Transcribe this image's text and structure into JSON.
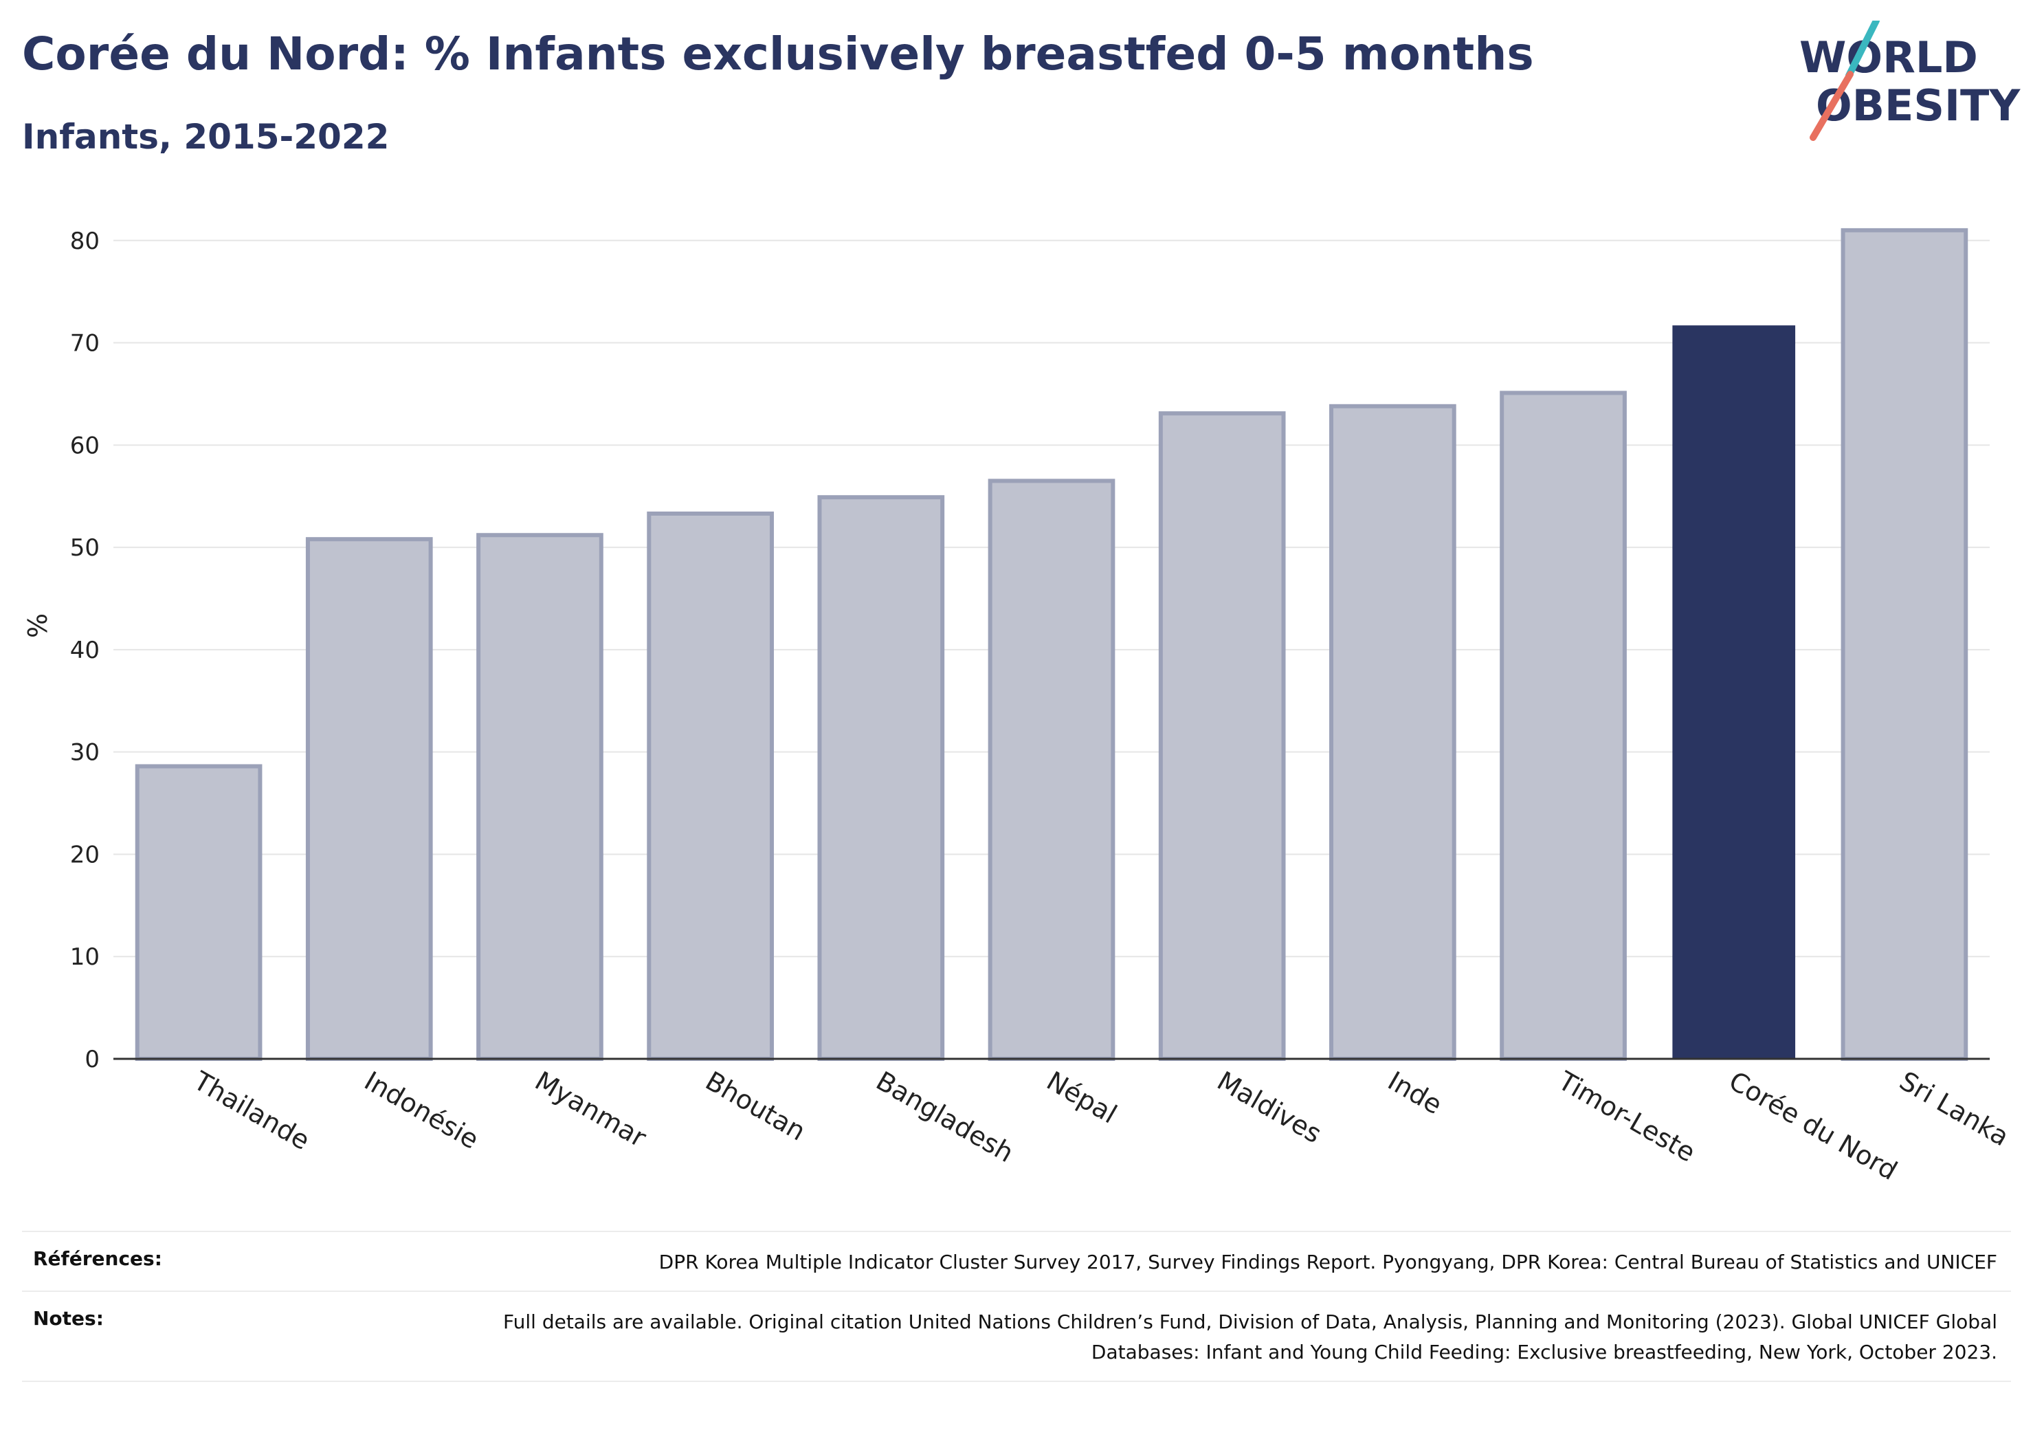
{
  "title": "Corée du Nord: % Infants exclusively breastfed 0-5 months",
  "subtitle": "Infants, 2015-2022",
  "logo": {
    "line1": "WORLD",
    "line2": "OBESITY",
    "accent_teal": "#3ab7bf",
    "accent_coral": "#e8705f"
  },
  "colors": {
    "highlight": "#2a3561",
    "bar_fill": "#bfc2cf",
    "bar_stroke": "#9ba1b8",
    "grid": "#e6e6e6",
    "text": "#2a3561"
  },
  "chart_data": {
    "type": "bar",
    "categories": [
      "Thailande",
      "Indonésie",
      "Myanmar",
      "Bhoutan",
      "Bangladesh",
      "Népal",
      "Maldives",
      "Inde",
      "Timor-Leste",
      "Corée du Nord",
      "Sri Lanka"
    ],
    "values": [
      28.6,
      50.8,
      51.2,
      53.3,
      54.9,
      56.5,
      63.1,
      63.8,
      65.1,
      71.7,
      81.0
    ],
    "highlight": "Corée du Nord",
    "ylabel": "%",
    "ylim": [
      0,
      82
    ],
    "yticks": [
      0,
      10,
      20,
      30,
      40,
      50,
      60,
      70,
      80
    ],
    "grid": true
  },
  "footer": {
    "references_label": "Références:",
    "references_text": "DPR Korea Multiple Indicator Cluster Survey 2017, Survey Findings Report. Pyongyang, DPR Korea: Central Bureau of Statistics and UNICEF",
    "notes_label": "Notes:",
    "notes_text": "Full details are available. Original citation United Nations Children’s Fund, Division of Data, Analysis, Planning and Monitoring (2023). Global UNICEF Global Databases: Infant and Young Child Feeding: Exclusive breastfeeding, New York, October 2023."
  }
}
